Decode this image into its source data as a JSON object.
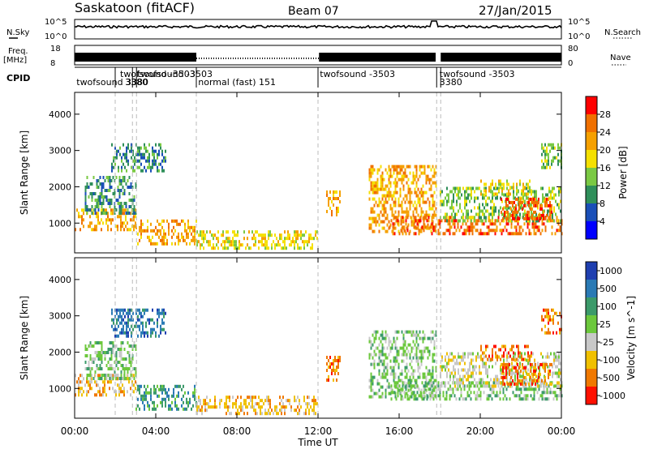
{
  "header": {
    "title": "Saskatoon (fitACF)",
    "beam": "Beam 07",
    "date": "27/Jan/2015"
  },
  "strips": {
    "nsky_label": "N.Sky",
    "nsky_ticks": [
      "10^5",
      "10^0"
    ],
    "nsearch_label": "N.Search",
    "nsearch_ticks": [
      "10^5",
      "10^0"
    ],
    "freq_label": "Freq.",
    "freq_unit": "[MHz]",
    "freq_ticks": [
      "18",
      "8"
    ],
    "nave_label": "Nave",
    "nave_ticks": [
      "80",
      "0"
    ],
    "cpid_label": "CPID"
  },
  "cpid": [
    {
      "text": "twofsound  3380",
      "row": 2,
      "x_hour": 0.05
    },
    {
      "text": "twofsound -3503",
      "row": 1,
      "x_hour": 2.2
    },
    {
      "text": "3380",
      "row": 2,
      "x_hour": 2.45
    },
    {
      "text": "twofsound -3503",
      "row": 1,
      "x_hour": 3.05
    },
    {
      "text": "normal (fast) 151",
      "row": 2,
      "x_hour": 6.05
    },
    {
      "text": "twofsound -3503",
      "row": 1,
      "x_hour": 12.05
    },
    {
      "text": "twofsound -3503",
      "row": 1,
      "x_hour": 17.95
    },
    {
      "text": "3380",
      "row": 2,
      "x_hour": 17.95
    }
  ],
  "mode_boundaries_hours": [
    2.0,
    2.85,
    3.05,
    6.0,
    12.0,
    17.85,
    18.05
  ],
  "panels": {
    "power": {
      "ylabel": "Slant Range [km]",
      "yticks": [
        "1000",
        "2000",
        "3000",
        "4000"
      ],
      "colorbar_label": "Power [dB]",
      "colorbar_ticks": [
        "4",
        "8",
        "12",
        "16",
        "20",
        "24",
        "28"
      ],
      "colors": [
        "#0000ff",
        "#1a4fb8",
        "#2f8f5a",
        "#7ac943",
        "#f5e000",
        "#f5a000",
        "#f07000",
        "#ff0000"
      ]
    },
    "velocity": {
      "ylabel": "Slant Range [km]",
      "yticks": [
        "1000",
        "2000",
        "3000",
        "4000"
      ],
      "colorbar_label": "Velocity [m s^-1]",
      "colorbar_ticks": [
        "1000",
        "500",
        "100",
        "25",
        "-25",
        "-100",
        "-500",
        "-1000"
      ],
      "colors": [
        "#1f3fb0",
        "#2a7ab5",
        "#3b9a6a",
        "#6cc83c",
        "#c8c8c8",
        "#f0c000",
        "#f07800",
        "#ff1000"
      ]
    }
  },
  "xaxis": {
    "label": "Time UT",
    "ticks": [
      "00:00",
      "04:00",
      "08:00",
      "12:00",
      "16:00",
      "20:00",
      "00:00"
    ]
  },
  "chart_data": {
    "type": "heatmap",
    "title": "Saskatoon (fitACF)",
    "subtitle": "Beam 07",
    "date": "27/Jan/2015",
    "xlabel": "Time UT",
    "ylabel": "Slant Range [km]",
    "xlim_hours": [
      0,
      24
    ],
    "ylim_km": [
      180,
      4600
    ],
    "xtick_hours": [
      0,
      4,
      8,
      12,
      16,
      20,
      24
    ],
    "ytick_km": [
      1000,
      2000,
      3000,
      4000
    ],
    "freq_mhz": 11,
    "power_scale_db": [
      0,
      30
    ],
    "velocity_levels_ms": [
      1000,
      500,
      100,
      25,
      -25,
      -100,
      -500,
      -1000
    ],
    "features": [
      {
        "t_start_h": 0.0,
        "t_end_h": 3.0,
        "r_start_km": 800,
        "r_end_km": 1400,
        "power_db": 22,
        "velocity_ms": -100
      },
      {
        "t_start_h": 0.5,
        "t_end_h": 3.0,
        "r_start_km": 1300,
        "r_end_km": 2300,
        "power_db": 10,
        "velocity_ms": 25
      },
      {
        "t_start_h": 1.8,
        "t_end_h": 4.5,
        "r_start_km": 2400,
        "r_end_km": 3200,
        "power_db": 10,
        "velocity_ms": 500
      },
      {
        "t_start_h": 3.0,
        "t_end_h": 6.0,
        "r_start_km": 450,
        "r_end_km": 1100,
        "power_db": 20,
        "velocity_ms": 100
      },
      {
        "t_start_h": 6.0,
        "t_end_h": 12.0,
        "r_start_km": 350,
        "r_end_km": 800,
        "power_db": 18,
        "velocity_ms": -100
      },
      {
        "t_start_h": 12.4,
        "t_end_h": 13.1,
        "r_start_km": 1200,
        "r_end_km": 1900,
        "power_db": 20,
        "velocity_ms": -500
      },
      {
        "t_start_h": 14.5,
        "t_end_h": 17.8,
        "r_start_km": 800,
        "r_end_km": 2600,
        "power_db": 20,
        "velocity_ms": 25
      },
      {
        "t_start_h": 15.5,
        "t_end_h": 24.0,
        "r_start_km": 700,
        "r_end_km": 1200,
        "power_db": 26,
        "velocity_ms": 25
      },
      {
        "t_start_h": 18.0,
        "t_end_h": 24.0,
        "r_start_km": 1100,
        "r_end_km": 2000,
        "power_db": 12,
        "velocity_ms": -25
      },
      {
        "t_start_h": 21.0,
        "t_end_h": 23.5,
        "r_start_km": 1100,
        "r_end_km": 1700,
        "power_db": 26,
        "velocity_ms": -500
      },
      {
        "t_start_h": 20.0,
        "t_end_h": 22.5,
        "r_start_km": 1800,
        "r_end_km": 2200,
        "power_db": 16,
        "velocity_ms": -500
      },
      {
        "t_start_h": 23.0,
        "t_end_h": 24.0,
        "r_start_km": 2500,
        "r_end_km": 3200,
        "power_db": 12,
        "velocity_ms": -500
      }
    ]
  }
}
